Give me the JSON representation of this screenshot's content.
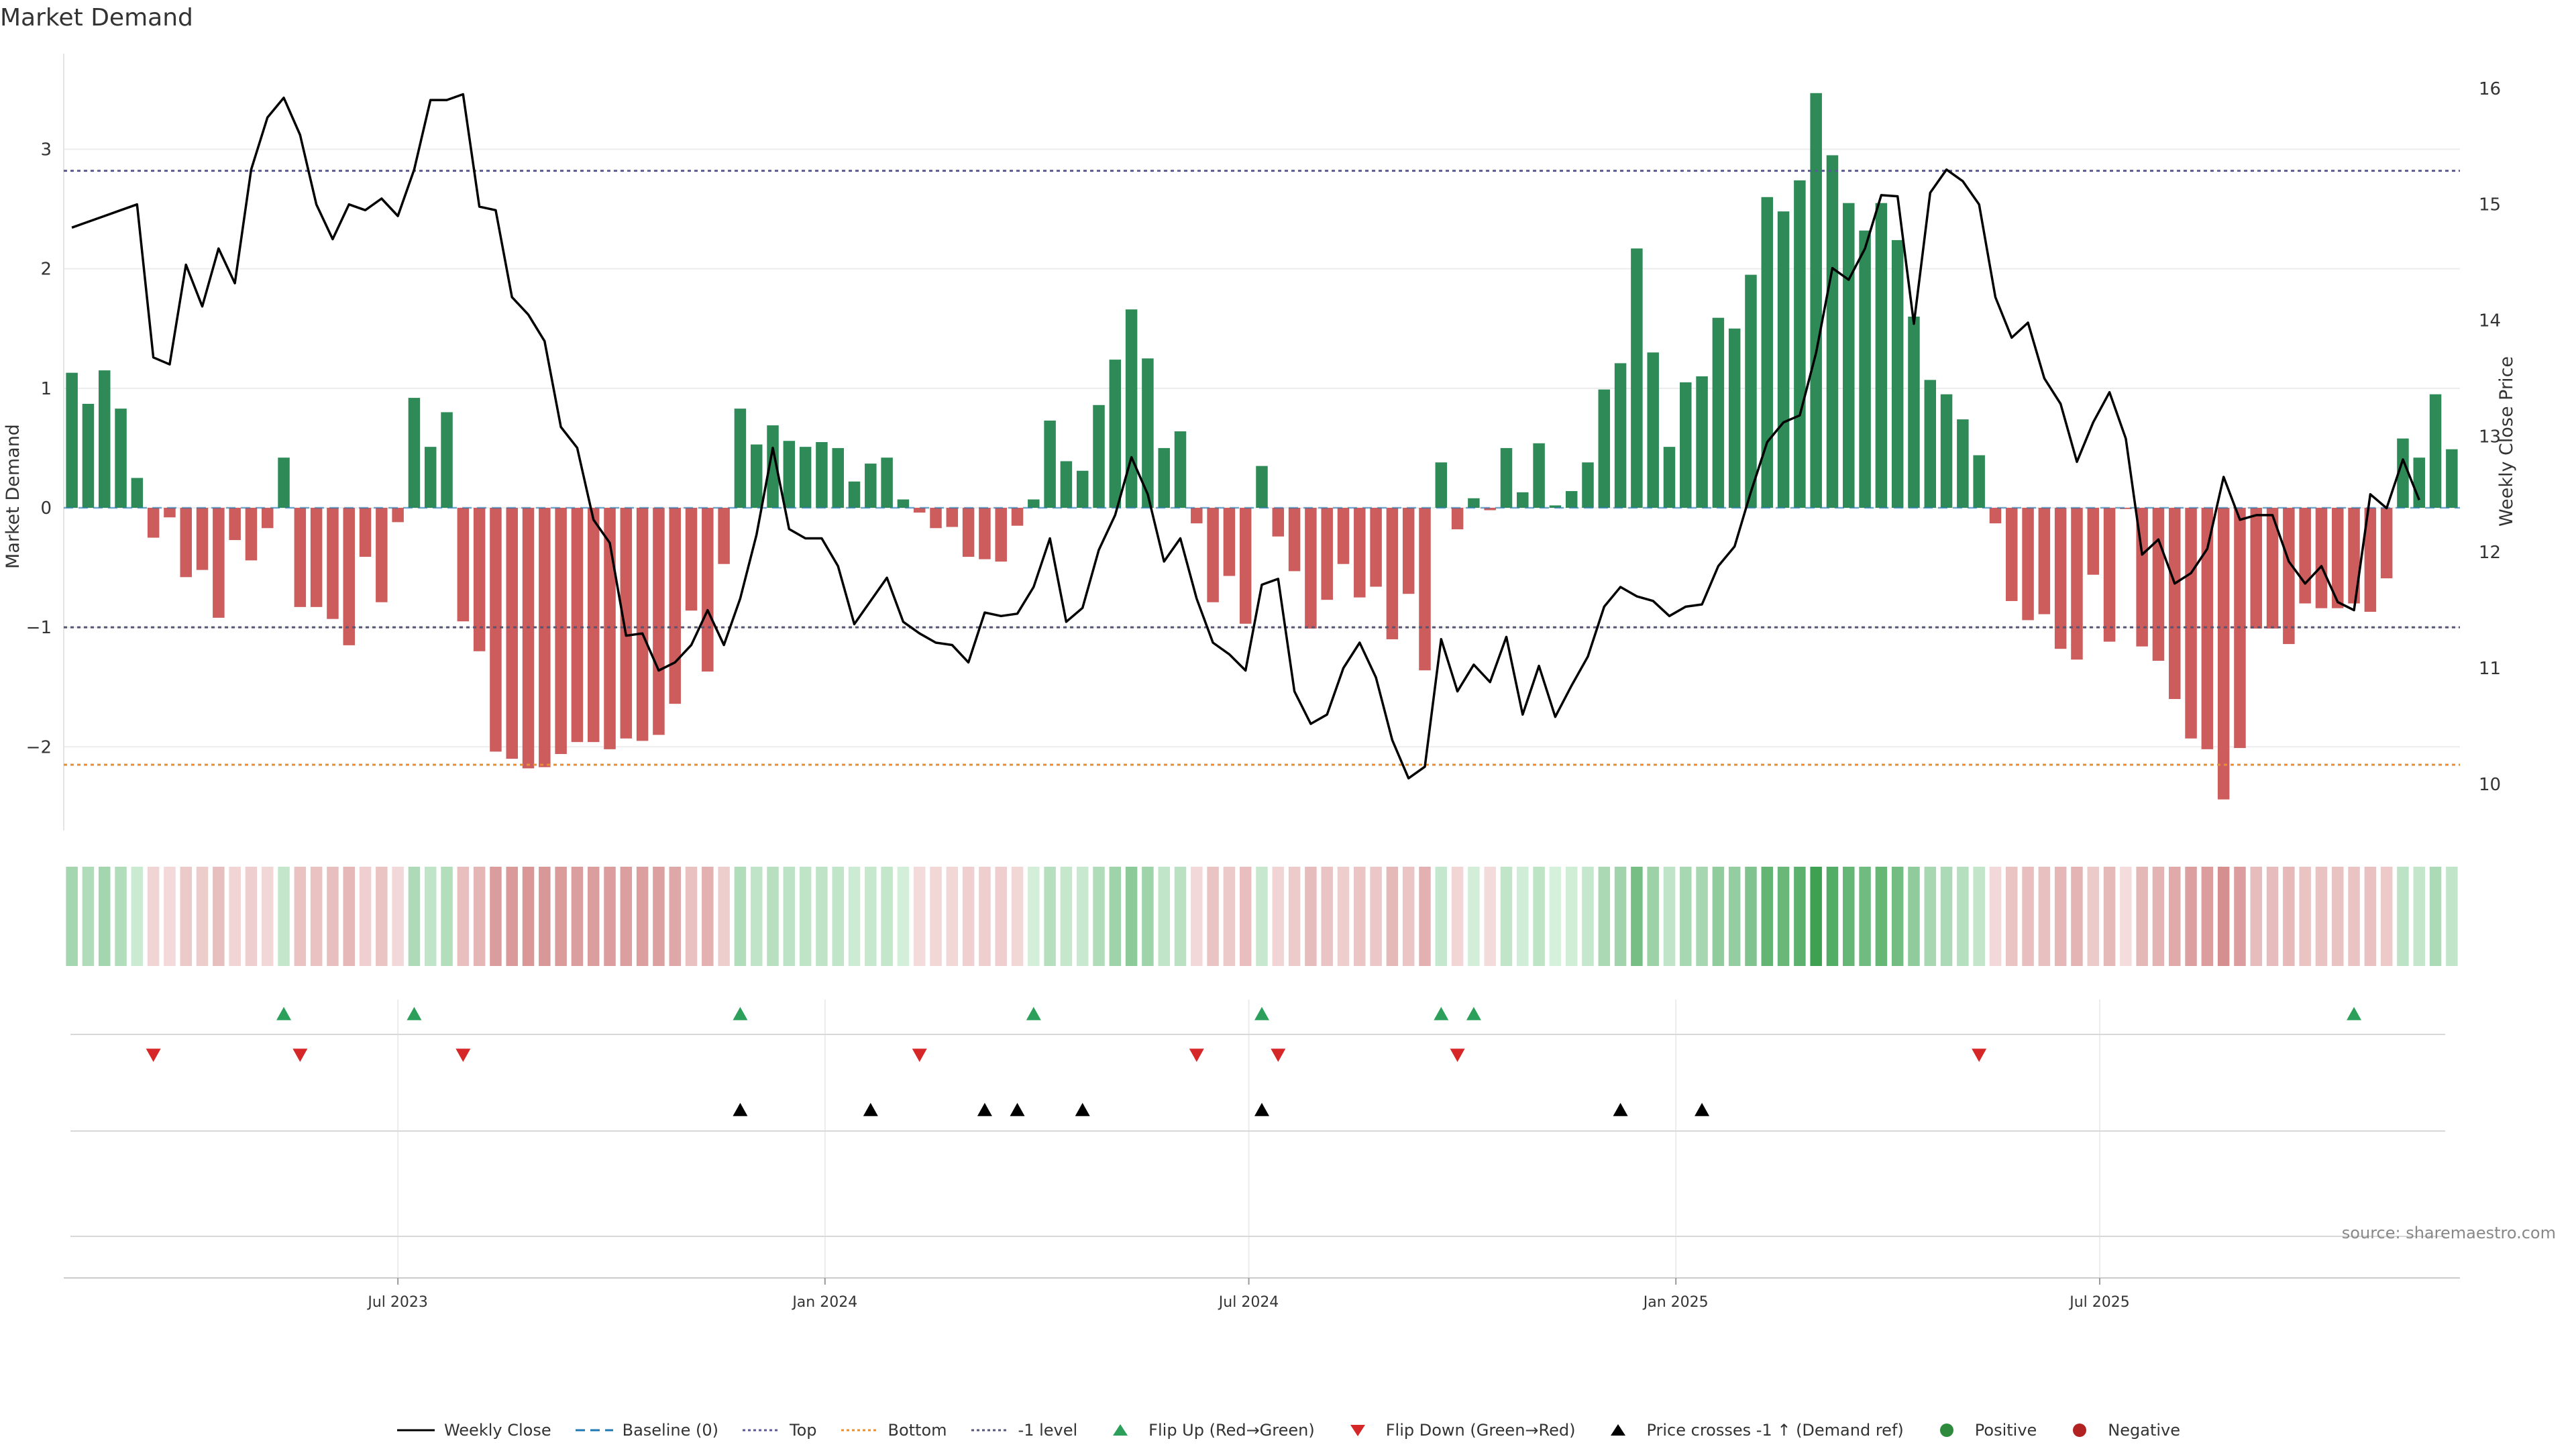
{
  "chart_data": {
    "type": "bar",
    "title": "Market Demand",
    "ylabel": "Market Demand",
    "y2label": "Weekly Close Price",
    "ylim": [
      -2.7,
      3.8
    ],
    "y2lim": [
      9.6,
      16.3
    ],
    "yticks": [
      -2,
      -1,
      0,
      1,
      2,
      3
    ],
    "ytick_labels": [
      "−2",
      "−1",
      "0",
      "1",
      "2",
      "3"
    ],
    "y2ticks": [
      10,
      11,
      12,
      13,
      14,
      15,
      16
    ],
    "y2tick_labels": [
      "10",
      "11",
      "12",
      "13",
      "14",
      "15",
      "16"
    ],
    "x_start": "2023-01-06",
    "x_step_weeks": 1,
    "x_tick_labels": [
      "Jul 2023",
      "Jan 2024",
      "Jul 2024",
      "Jan 2025",
      "Jul 2025"
    ],
    "x_tick_index": [
      20.5,
      46.7,
      72.7,
      98.9,
      124.9
    ],
    "levels": {
      "baseline": 0,
      "top": 2.82,
      "bottom": -2.15,
      "minus_one": -1
    },
    "series": [
      {
        "name": "Market Demand",
        "values": [
          1.13,
          0.87,
          1.15,
          0.83,
          0.25,
          -0.25,
          -0.08,
          -0.58,
          -0.52,
          -0.92,
          -0.27,
          -0.44,
          -0.17,
          0.42,
          -0.83,
          -0.83,
          -0.93,
          -1.15,
          -0.41,
          -0.79,
          -0.12,
          0.92,
          0.51,
          0.8,
          -0.95,
          -1.2,
          -2.04,
          -2.1,
          -2.18,
          -2.17,
          -2.06,
          -1.96,
          -1.96,
          -2.02,
          -1.93,
          -1.95,
          -1.9,
          -1.64,
          -0.86,
          -1.37,
          -0.47,
          0.83,
          0.53,
          0.69,
          0.56,
          0.51,
          0.55,
          0.5,
          0.22,
          0.37,
          0.42,
          0.07,
          -0.04,
          -0.17,
          -0.16,
          -0.41,
          -0.43,
          -0.45,
          -0.15,
          0.07,
          0.73,
          0.39,
          0.31,
          0.86,
          1.24,
          1.66,
          1.25,
          0.5,
          0.64,
          -0.13,
          -0.79,
          -0.57,
          -0.97,
          0.35,
          -0.24,
          -0.53,
          -1.01,
          -0.77,
          -0.47,
          -0.75,
          -0.66,
          -1.1,
          -0.72,
          -1.36,
          0.38,
          -0.18,
          0.08,
          -0.02,
          0.5,
          0.13,
          0.54,
          0.02,
          0.14,
          0.38,
          0.99,
          1.21,
          2.17,
          1.3,
          0.51,
          1.05,
          1.1,
          1.59,
          1.5,
          1.95,
          2.6,
          2.48,
          2.74,
          3.47,
          2.95,
          2.55,
          2.32,
          2.55,
          2.24,
          1.6,
          1.07,
          0.95,
          0.74,
          0.44,
          -0.13,
          -0.78,
          -0.94,
          -0.89,
          -1.18,
          -1.27,
          -0.56,
          -1.12,
          -0.01,
          -1.16,
          -1.28,
          -1.6,
          -1.93,
          -2.02,
          -2.44,
          -2.01,
          -1.01,
          -1.01,
          -1.14,
          -0.8,
          -0.84,
          -0.84,
          -0.8,
          -0.87,
          -0.59,
          0.58,
          0.42,
          0.95,
          0.49
        ]
      },
      {
        "name": "Weekly Close",
        "values": [
          14.8,
          14.85,
          14.9,
          14.95,
          15.0,
          13.68,
          13.62,
          14.48,
          14.12,
          14.62,
          14.32,
          15.3,
          15.75,
          15.92,
          15.6,
          15.0,
          14.7,
          15.0,
          14.95,
          15.05,
          14.9,
          15.3,
          15.9,
          15.9,
          15.95,
          14.98,
          14.95,
          14.2,
          14.05,
          13.82,
          13.08,
          12.9,
          12.28,
          12.08,
          11.28,
          11.3,
          10.98,
          11.05,
          11.2,
          11.5,
          11.2,
          11.6,
          12.15,
          12.9,
          12.2,
          12.12,
          12.12,
          11.88,
          11.38,
          11.58,
          11.78,
          11.4,
          11.3,
          11.22,
          11.2,
          11.05,
          11.48,
          11.45,
          11.47,
          11.7,
          12.12,
          11.4,
          11.52,
          12.02,
          12.32,
          12.82,
          12.5,
          11.92,
          12.12,
          11.6,
          11.22,
          11.12,
          10.98,
          11.72,
          11.77,
          10.8,
          10.52,
          10.6,
          11.0,
          11.22,
          10.92,
          10.38,
          10.05,
          10.15,
          11.25,
          10.8,
          11.03,
          10.88,
          11.27,
          10.6,
          11.02,
          10.58,
          10.85,
          11.1,
          11.53,
          11.7,
          11.62,
          11.58,
          11.45,
          11.53,
          11.55,
          11.88,
          12.05,
          12.52,
          12.95,
          13.12,
          13.18,
          13.72,
          14.45,
          14.35,
          14.62,
          15.08,
          15.07,
          13.97,
          15.1,
          15.3,
          15.2,
          15.0,
          14.2,
          13.85,
          13.98,
          13.5,
          13.28,
          12.78,
          13.12,
          13.38,
          12.98,
          11.98,
          12.11,
          11.73,
          11.82,
          12.03,
          12.65,
          12.28,
          12.32,
          12.32,
          11.92,
          11.73,
          11.88,
          11.57,
          11.5,
          12.5,
          12.38,
          12.8,
          12.45
        ]
      }
    ],
    "heat_strip": {
      "label": "",
      "values_ref": "Market Demand"
    },
    "flip_up_index": [
      13,
      21,
      41,
      59,
      73,
      84,
      86,
      140
    ],
    "flip_down_index": [
      5,
      14,
      24,
      52,
      69,
      74,
      85,
      117
    ],
    "price_cross_index": [
      41,
      49,
      56,
      58,
      62,
      73,
      95,
      100
    ],
    "legend": [
      {
        "label": "Weekly Close",
        "type": "line",
        "color": "#000000"
      },
      {
        "label": "Baseline (0)",
        "type": "dash",
        "color": "#1f77b4"
      },
      {
        "label": "Top",
        "type": "dot",
        "color": "#5a5a9a"
      },
      {
        "label": "Bottom",
        "type": "dot",
        "color": "#e69030"
      },
      {
        "label": "-1 level",
        "type": "dot",
        "color": "#555577"
      },
      {
        "label": "Flip Up (Red→Green)",
        "type": "tri-up",
        "color": "#2ca05a"
      },
      {
        "label": "Flip Down (Green→Red)",
        "type": "tri-down",
        "color": "#d62728"
      },
      {
        "label": "Price crosses -1 ↑ (Demand ref)",
        "type": "tri-up",
        "color": "#000000"
      },
      {
        "label": "Positive",
        "type": "circle",
        "color": "#2e8b3e"
      },
      {
        "label": "Negative",
        "type": "circle",
        "color": "#b22222"
      }
    ],
    "source": "source: sharemaestro.com",
    "colors": {
      "positive": "#2e8b57",
      "negative": "#cd5c5c",
      "line": "#000000"
    }
  }
}
